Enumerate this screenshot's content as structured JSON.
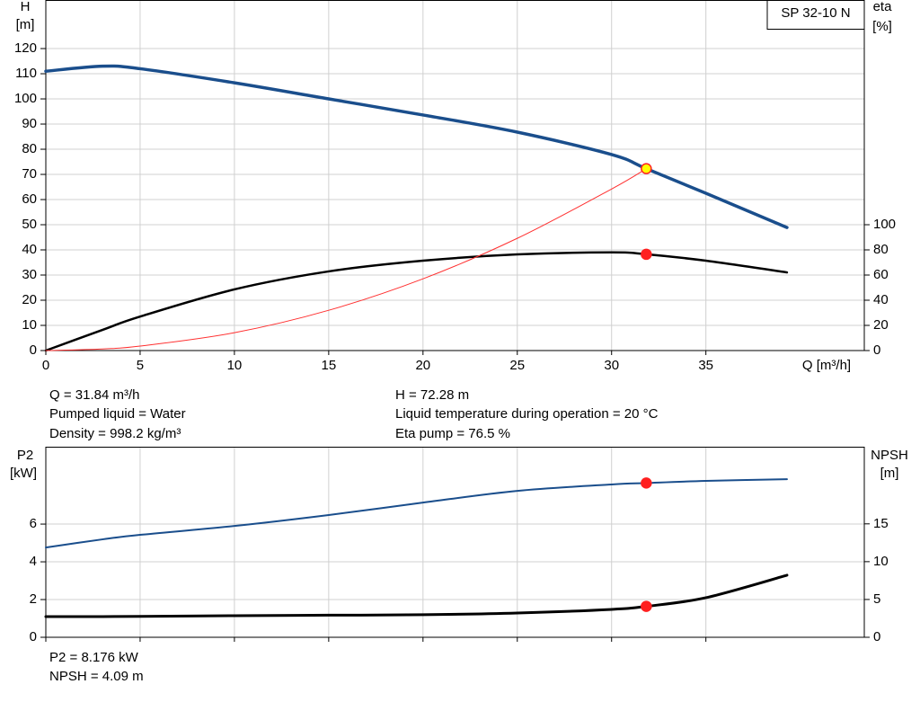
{
  "chart_data": [
    {
      "type": "line",
      "label": "SP 32-10 N",
      "ylabel": "H",
      "yunit": "[m]",
      "y2label": "eta",
      "y2unit": "[%]",
      "xlabel": "Q [m³/h]",
      "xlim": [
        0,
        43.4
      ],
      "xticks": [
        0,
        5,
        10,
        15,
        20,
        25,
        30,
        35
      ],
      "xtick_labels": true,
      "ylim": [
        0,
        139.3
      ],
      "yticks": [
        0,
        10,
        20,
        30,
        40,
        50,
        60,
        70,
        80,
        90,
        100,
        110,
        120
      ],
      "y2lim": [
        0,
        278.6
      ],
      "y2ticks": [
        0,
        20,
        40,
        60,
        80,
        100
      ],
      "grid": true,
      "x": [
        0,
        3,
        5,
        10,
        15,
        20,
        25,
        30,
        31.84,
        35,
        39.3
      ],
      "series": [
        {
          "color": "#1a4e8c",
          "width": 3.5,
          "axis": "y",
          "highlight": 8,
          "marker_fill": "#ffff00",
          "marker_stroke": "#ff2020",
          "values": [
            111,
            113,
            112,
            106.4,
            100,
            93.6,
            86.8,
            77.9,
            72.28,
            62.5,
            48.9
          ]
        },
        {
          "color": "#000000",
          "width": 2.5,
          "axis": "y2",
          "highlight": 8,
          "marker_fill": "#ff2020",
          "marker_stroke": "#ff2020",
          "values": [
            0,
            16.4,
            27,
            48.6,
            62.9,
            71.4,
            76.4,
            78,
            76.5,
            71.4,
            62.1
          ]
        },
        {
          "color": "#ff3030",
          "width": 1,
          "axis": "y",
          "values": [
            0,
            0.64,
            1.78,
            7.1,
            16,
            28.5,
            44.6,
            64.2,
            72.28,
            null,
            null
          ]
        }
      ],
      "annotations": [
        "Q = 31.84 m³/h",
        "Pumped liquid = Water",
        "Density = 998.2 kg/m³",
        "H = 72.28 m",
        "Liquid temperature during operation = 20 °C",
        "Eta pump = 76.5 %"
      ]
    },
    {
      "type": "line",
      "ylabel": "P2",
      "yunit": "[kW]",
      "y2label": "NPSH",
      "y2unit": "[m]",
      "xlim": [
        0,
        43.4
      ],
      "xticks": [
        0,
        5,
        10,
        15,
        20,
        25,
        30,
        35
      ],
      "xtick_labels": false,
      "ylim": [
        0,
        10.1
      ],
      "yticks": [
        0,
        2,
        4,
        6
      ],
      "y2lim": [
        0,
        25.2
      ],
      "y2ticks": [
        0,
        5,
        10,
        15
      ],
      "grid": true,
      "x": [
        0,
        3,
        5,
        10,
        15,
        20,
        25,
        30,
        31.84,
        35,
        39.3
      ],
      "series": [
        {
          "color": "#1a4e8c",
          "width": 2,
          "axis": "y",
          "highlight": 8,
          "marker_fill": "#ff2020",
          "marker_stroke": "#ff2020",
          "values": [
            4.76,
            5.19,
            5.43,
            5.9,
            6.48,
            7.14,
            7.76,
            8.1,
            8.176,
            8.29,
            8.38
          ]
        },
        {
          "color": "#000000",
          "width": 3,
          "axis": "y2",
          "highlight": 8,
          "marker_fill": "#ff2020",
          "marker_stroke": "#ff2020",
          "values": [
            2.74,
            2.74,
            2.76,
            2.86,
            2.92,
            2.98,
            3.21,
            3.69,
            4.09,
            5.24,
            8.21
          ]
        }
      ],
      "annotations": [
        "P2 = 8.176 kW",
        "NPSH = 4.09 m"
      ]
    }
  ]
}
